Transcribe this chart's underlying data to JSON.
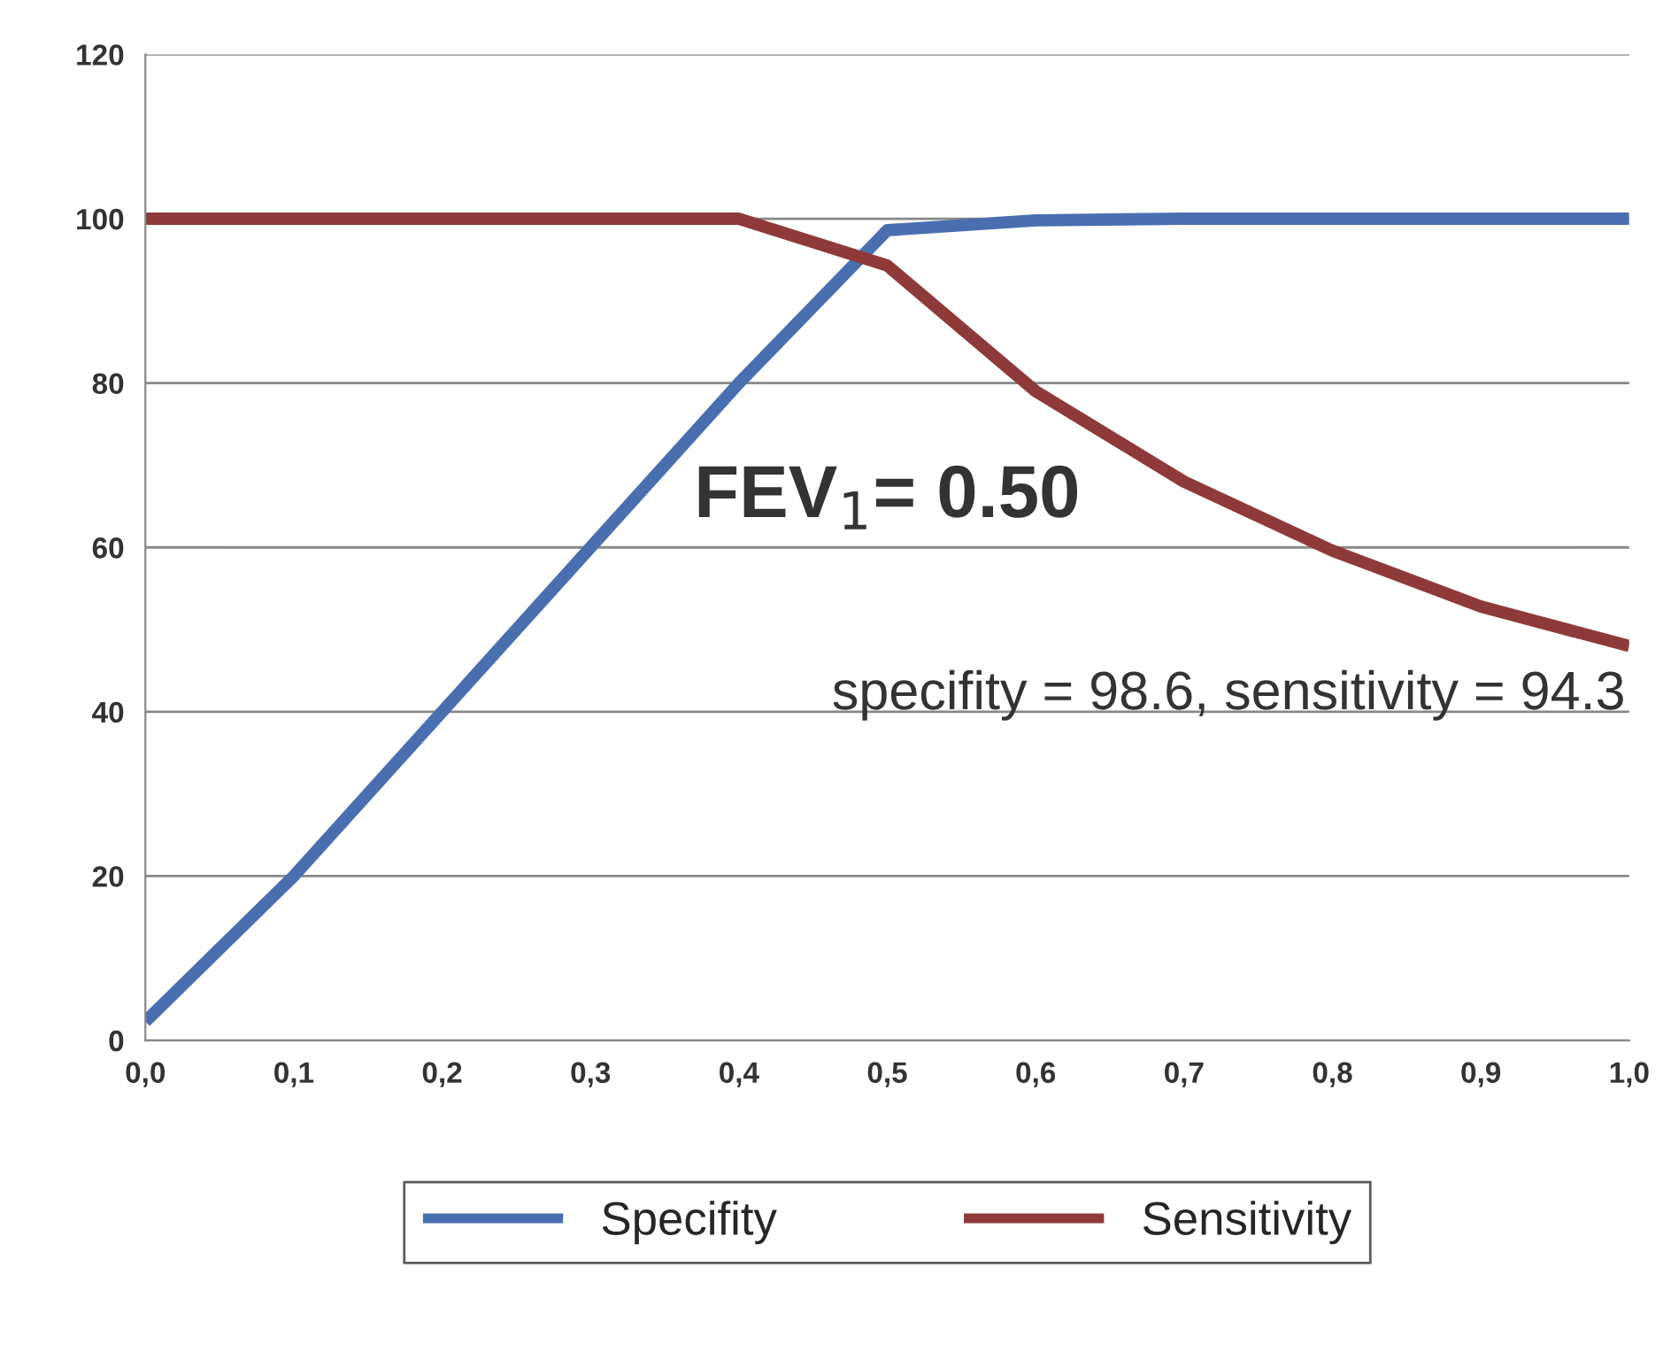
{
  "chart_data": {
    "type": "line",
    "x": [
      0,
      0.1,
      0.2,
      0.3,
      0.4,
      0.5,
      0.6,
      0.7,
      0.8,
      0.9,
      1.0
    ],
    "series": [
      {
        "name": "Specifity",
        "color": "#4a6fb0",
        "values": [
          2.3,
          20,
          40,
          60,
          80,
          98.6,
          99.8,
          100,
          100,
          100,
          100
        ]
      },
      {
        "name": "Sensitivity",
        "color": "#8e3a3a",
        "values": [
          100,
          100,
          100,
          100,
          100,
          94.3,
          79,
          68,
          59.6,
          52.8,
          48
        ]
      }
    ],
    "xlim": [
      0,
      1
    ],
    "ylim": [
      0,
      120
    ],
    "xticks": [
      {
        "value": 0,
        "label": "0,0"
      },
      {
        "value": 0.1,
        "label": "0,1"
      },
      {
        "value": 0.2,
        "label": "0,2"
      },
      {
        "value": 0.3,
        "label": "0,3"
      },
      {
        "value": 0.4,
        "label": "0,4"
      },
      {
        "value": 0.5,
        "label": "0,5"
      },
      {
        "value": 0.6,
        "label": "0,6"
      },
      {
        "value": 0.7,
        "label": "0,7"
      },
      {
        "value": 0.8,
        "label": "0,8"
      },
      {
        "value": 0.9,
        "label": "0,9"
      },
      {
        "value": 1.0,
        "label": "1,0"
      }
    ],
    "yticks": [
      0,
      20,
      40,
      60,
      80,
      100,
      120
    ],
    "annotations": [
      "FEV$_{1}$= 0.50",
      "specifity = 98.6, sensitivity = 94.3"
    ],
    "grid": "y",
    "legend": "bottom",
    "marker": "none",
    "line_style": "solid"
  }
}
